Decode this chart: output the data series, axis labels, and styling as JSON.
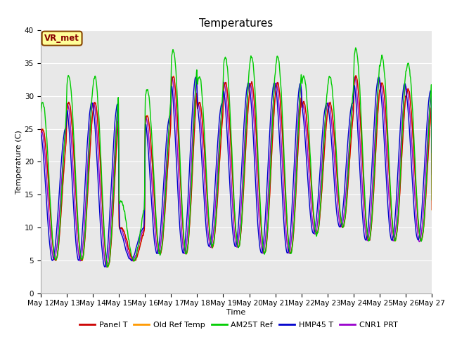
{
  "title": "Temperatures",
  "xlabel": "Time",
  "ylabel": "Temperature (C)",
  "ylim": [
    0,
    40
  ],
  "series_colors": {
    "Panel T": "#cc0000",
    "Old Ref Temp": "#ff9900",
    "AM25T Ref": "#00cc00",
    "HMP45 T": "#0000cc",
    "CNR1 PRT": "#9900cc"
  },
  "annotation_text": "VR_met",
  "annotation_fg": "#880000",
  "annotation_bg": "#ffff99",
  "annotation_edge": "#884400",
  "background_color": "#ffffff",
  "plot_bg_color": "#e8e8e8",
  "grid_color": "#ffffff",
  "title_fontsize": 11,
  "axis_fontsize": 8,
  "tick_fontsize": 7.5,
  "legend_fontsize": 8,
  "line_width": 1.0,
  "num_days": 15,
  "samples_per_day": 144,
  "base_min_temps": [
    5,
    5,
    4,
    5,
    6,
    6,
    7,
    7,
    6,
    6,
    9,
    10,
    8,
    8,
    8
  ],
  "base_max_temps": [
    25,
    29,
    29,
    10,
    27,
    33,
    29,
    32,
    32,
    32,
    29,
    29,
    33,
    32,
    31
  ],
  "am25t_extra": 4.0,
  "hmp45_phase": 0.12,
  "cnr1_phase": 0.06,
  "x_tick_labels": [
    "May 12",
    "May 13",
    "May 14",
    "May 15",
    "May 16",
    "May 17",
    "May 18",
    "May 19",
    "May 20",
    "May 21",
    "May 22",
    "May 23",
    "May 24",
    "May 25",
    "May 26",
    "May 27"
  ]
}
